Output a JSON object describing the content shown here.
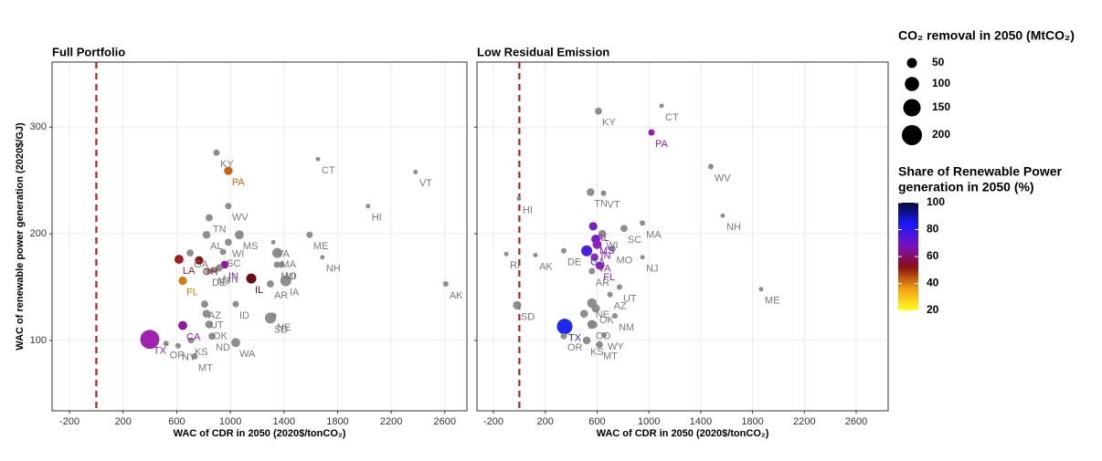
{
  "chart_data": [
    {
      "type": "scatter",
      "title": "Full Portfolio",
      "x_label": "WAC of CDR in 2050 (2020$/tonCO₂)",
      "y_label": "WAC of renewable power generation (2020$/GJ)",
      "xlim": [
        -330,
        2765
      ],
      "ylim": [
        34,
        361
      ],
      "xticks": [
        -200,
        200,
        600,
        1000,
        1400,
        1800,
        2200,
        2600
      ],
      "yticks": [
        100,
        200,
        300
      ],
      "ytick_labels": true,
      "grid": true,
      "vline": {
        "x": 0,
        "color": "#b22222"
      },
      "labels": [
        "KY",
        "PA",
        "CT",
        "VT",
        "HI",
        "WV",
        "TN",
        "ME",
        "NH",
        "MS",
        "AL",
        "WI",
        "SC",
        "VA",
        "MA",
        "MO",
        "MI",
        "GA",
        "LA",
        "OH",
        "IN",
        "IL",
        "FL",
        "DE",
        "NJ",
        "MN",
        "IA",
        "AR",
        "AK",
        "AZ",
        "ID",
        "UT",
        "SD",
        "NE",
        "OK",
        "CA",
        "ND",
        "TX",
        "WA",
        "KS",
        "OR",
        "NY",
        "MT"
      ],
      "x": [
        897,
        985,
        1653,
        2382,
        2027,
        985,
        842,
        1591,
        1687,
        1067,
        822,
        985,
        945,
        1320,
        1350,
        1347,
        1380,
        700,
        617,
        767,
        958,
        1156,
        645,
        836,
        877,
        917,
        1414,
        1299,
        2607,
        808,
        1040,
        822,
        1299,
        1320,
        842,
        645,
        863,
        399,
        1040,
        706,
        520,
        610,
        733
      ],
      "values": [
        276,
        259,
        270,
        258,
        226,
        226,
        215,
        199,
        178,
        199,
        199,
        192,
        183,
        192,
        182,
        171,
        171,
        182,
        176,
        175,
        171,
        158,
        156,
        165,
        166,
        168,
        156,
        153,
        153,
        134,
        134,
        125,
        121,
        123,
        115,
        114,
        104,
        101,
        98,
        100,
        97,
        95,
        85
      ],
      "sizes": [
        20,
        35,
        10,
        10,
        10,
        20,
        25,
        20,
        10,
        40,
        30,
        25,
        20,
        10,
        50,
        20,
        20,
        25,
        40,
        35,
        30,
        50,
        35,
        20,
        20,
        25,
        60,
        25,
        15,
        25,
        20,
        30,
        60,
        20,
        30,
        40,
        25,
        180,
        40,
        20,
        15,
        15,
        20
      ],
      "colors": [
        "#888888",
        "#c8650f",
        "#888888",
        "#888888",
        "#888888",
        "#888888",
        "#888888",
        "#888888",
        "#888888",
        "#888888",
        "#888888",
        "#888888",
        "#888888",
        "#888888",
        "#888888",
        "#888888",
        "#888888",
        "#888888",
        "#a41a1a",
        "#8a1010",
        "#8e1aa0",
        "#6e0a1a",
        "#d97a10",
        "#888888",
        "#888888",
        "#888888",
        "#888888",
        "#888888",
        "#888888",
        "#888888",
        "#888888",
        "#888888",
        "#888888",
        "#888888",
        "#888888",
        "#8e1aa0",
        "#888888",
        "#a020b0",
        "#888888",
        "#888888",
        "#888888",
        "#888888",
        "#888888"
      ]
    },
    {
      "type": "scatter",
      "title": "Low Residual Emission",
      "x_label": "WAC of CDR in 2050 (2020$/tonCO₂)",
      "xlim": [
        -327,
        2847
      ],
      "ylim": [
        34,
        361
      ],
      "xticks": [
        -200,
        200,
        600,
        1000,
        1400,
        1800,
        2200,
        2600
      ],
      "yticks": [
        100,
        200,
        300
      ],
      "ytick_labels": false,
      "grid": true,
      "vline": {
        "x": 0,
        "color": "#b22222"
      },
      "labels": [
        "KY",
        "CT",
        "PA",
        "WV",
        "NH",
        "ME",
        "HI",
        "RI",
        "AK",
        "DE",
        "TN",
        "VT",
        "MA",
        "SC",
        "AL",
        "WI",
        "MS",
        "IN",
        "MO",
        "GA",
        "VA",
        "FL",
        "NJ",
        "AR",
        "UT",
        "AZ",
        "NE",
        "OK",
        "SD",
        "ID",
        "NM",
        "CO",
        "TX",
        "WY",
        "OR",
        "KS",
        "MT"
      ],
      "x": [
        611,
        1098,
        1020,
        1478,
        1570,
        1866,
        -3,
        -101,
        124,
        343,
        550,
        650,
        950,
        808,
        570,
        640,
        590,
        600,
        720,
        520,
        580,
        620,
        950,
        560,
        773,
        700,
        560,
        590,
        -17,
        500,
        738,
        560,
        350,
        653,
        343,
        520,
        618
      ],
      "values": [
        315,
        320,
        295,
        263,
        217,
        148,
        233,
        181,
        180,
        184,
        239,
        238,
        210,
        205,
        207,
        200,
        195,
        190,
        186,
        184,
        178,
        170,
        178,
        165,
        150,
        143,
        135,
        130,
        133,
        125,
        123,
        115,
        113,
        105,
        104,
        100,
        96
      ],
      "sizes": [
        25,
        10,
        20,
        15,
        10,
        10,
        10,
        10,
        10,
        15,
        30,
        15,
        15,
        25,
        35,
        30,
        40,
        40,
        20,
        60,
        30,
        30,
        10,
        20,
        15,
        15,
        45,
        35,
        35,
        30,
        15,
        40,
        120,
        15,
        20,
        30,
        25
      ],
      "colors": [
        "#888888",
        "#888888",
        "#9a18b8",
        "#888888",
        "#888888",
        "#888888",
        "#888888",
        "#888888",
        "#888888",
        "#888888",
        "#888888",
        "#888888",
        "#888888",
        "#888888",
        "#7a20c0",
        "#888888",
        "#7a1ad0",
        "#8a20c0",
        "#888888",
        "#4a20e0",
        "#8a30c0",
        "#9020b0",
        "#888888",
        "#888888",
        "#888888",
        "#888888",
        "#888888",
        "#888888",
        "#888888",
        "#888888",
        "#888888",
        "#888888",
        "#1e28f0",
        "#888888",
        "#888888",
        "#888888",
        "#888888"
      ]
    }
  ],
  "size_legend": {
    "title": "CO₂ removal in 2050 (MtCO₂)",
    "values": [
      50,
      100,
      150,
      200
    ],
    "color": "#000000"
  },
  "color_legend": {
    "title": [
      "Share of Renewable Power",
      "generation in 2050 (%)"
    ],
    "lim": [
      20,
      100
    ],
    "ticks": [
      20,
      40,
      60,
      80,
      100
    ],
    "colors": [
      "#ffff20",
      "#f0a010",
      "#8b1010",
      "#7a10c0",
      "#1818ff",
      "#0a0a30"
    ]
  }
}
